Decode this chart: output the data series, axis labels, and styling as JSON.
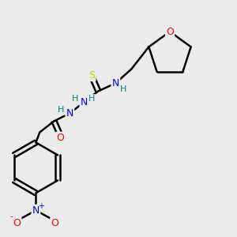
{
  "bg_color": "#ebebeb",
  "line_color": "#000000",
  "bond_width": 1.8,
  "atom_colors": {
    "O": "#ff0000",
    "N": "#0000ff",
    "S": "#cccc00",
    "H": "#008080",
    "C": "#000000"
  },
  "font_size": 9,
  "fig_width": 3.0,
  "fig_height": 3.0,
  "dpi": 100
}
